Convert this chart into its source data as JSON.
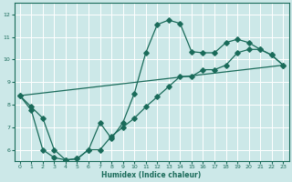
{
  "background_color": "#cce8e8",
  "grid_color": "#ffffff",
  "line_color": "#1a6b5a",
  "xlabel": "Humidex (Indice chaleur)",
  "xlim": [
    -0.5,
    23.5
  ],
  "ylim": [
    5.5,
    12.5
  ],
  "yticks": [
    6,
    7,
    8,
    9,
    10,
    11,
    12
  ],
  "xticks": [
    0,
    1,
    2,
    3,
    4,
    5,
    6,
    7,
    8,
    9,
    10,
    11,
    12,
    13,
    14,
    15,
    16,
    17,
    18,
    19,
    20,
    21,
    22,
    23
  ],
  "curve1_x": [
    0,
    1,
    2,
    3,
    4,
    5,
    6,
    7,
    8,
    9,
    10,
    11,
    12,
    13,
    14,
    15,
    16,
    17,
    18,
    19,
    20,
    21,
    22,
    23
  ],
  "curve1_y": [
    8.4,
    7.75,
    6.0,
    5.65,
    5.55,
    5.6,
    6.0,
    7.2,
    6.5,
    7.2,
    8.5,
    10.3,
    11.55,
    11.75,
    11.6,
    10.35,
    10.3,
    10.3,
    10.75,
    10.9,
    10.75,
    10.45,
    10.2,
    9.75
  ],
  "curve2_x": [
    0,
    1,
    2,
    3,
    4,
    5,
    6,
    7,
    8,
    9,
    10,
    11,
    12,
    13,
    14,
    15,
    16,
    17,
    18,
    19,
    20,
    21,
    22,
    23
  ],
  "curve2_y": [
    8.4,
    7.9,
    7.4,
    6.0,
    5.55,
    5.6,
    6.0,
    6.0,
    6.6,
    7.0,
    7.4,
    7.9,
    8.35,
    8.8,
    9.25,
    9.25,
    9.55,
    9.55,
    9.75,
    10.3,
    10.45,
    10.45,
    10.2,
    9.75
  ],
  "line3_x": [
    0,
    23
  ],
  "line3_y": [
    8.4,
    9.75
  ]
}
